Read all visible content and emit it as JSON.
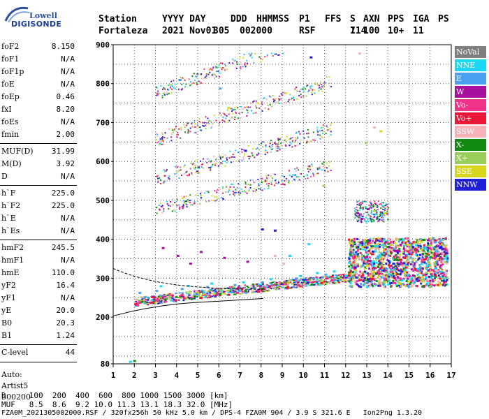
{
  "logo": {
    "line1": "Lowell",
    "line2": "DIGISONDE"
  },
  "header": {
    "labels": [
      "Station",
      "YYYY DAY",
      "DDD",
      "HHMMSS",
      "P1",
      "FFS",
      "S",
      "AXN",
      "PPS",
      "IGA",
      "PS"
    ],
    "values": [
      "Fortaleza",
      "2021 Nov01",
      "305",
      "002000",
      "RSF",
      "1",
      "714",
      "100",
      "10+",
      "11"
    ]
  },
  "params": [
    {
      "name": "foF2",
      "value": "8.150"
    },
    {
      "name": "foF1",
      "value": "N/A"
    },
    {
      "name": "foF1p",
      "value": "N/A"
    },
    {
      "name": "foE",
      "value": "N/A"
    },
    {
      "name": "foEp",
      "value": "0.46"
    },
    {
      "name": "fxI",
      "value": "8.20"
    },
    {
      "name": "foEs",
      "value": "N/A"
    },
    {
      "name": "fmin",
      "value": "2.00"
    },
    {
      "name": "MUF(D)",
      "value": "31.99"
    },
    {
      "name": "M(D)",
      "value": "3.92"
    },
    {
      "name": "D",
      "value": "N/A"
    },
    {
      "name": "h`F",
      "value": "225.0"
    },
    {
      "name": "h`F2",
      "value": "225.0"
    },
    {
      "name": "h`E",
      "value": "N/A"
    },
    {
      "name": "h`Es",
      "value": "N/A"
    },
    {
      "name": "hmF2",
      "value": "245.5"
    },
    {
      "name": "hmF1",
      "value": "N/A"
    },
    {
      "name": "hmE",
      "value": "110.0"
    },
    {
      "name": "yF2",
      "value": "16.4"
    },
    {
      "name": "yF1",
      "value": "N/A"
    },
    {
      "name": "yE",
      "value": "20.0"
    },
    {
      "name": "B0",
      "value": "20.3"
    },
    {
      "name": "B1",
      "value": "1.24"
    },
    {
      "name": "C-level",
      "value": "44"
    }
  ],
  "auto": {
    "line1": "Auto:",
    "line2": "Artist5",
    "line3": "500200"
  },
  "legend": [
    {
      "label": "NoVal",
      "color": "#7f7f7f"
    },
    {
      "label": "NNE",
      "color": "#19d7f5"
    },
    {
      "label": "E",
      "color": "#4aa0f0"
    },
    {
      "label": "W",
      "color": "#a6109c"
    },
    {
      "label": "Vo-",
      "color": "#f0348a"
    },
    {
      "label": "Vo+",
      "color": "#ea1838"
    },
    {
      "label": "SSW",
      "color": "#f6b2b8"
    },
    {
      "label": "X-",
      "color": "#128a12"
    },
    {
      "label": "X+",
      "color": "#9acd5a"
    },
    {
      "label": "SSE",
      "color": "#d6d61a"
    },
    {
      "label": "NNW",
      "color": "#2020d8"
    }
  ],
  "bottom": {
    "d_line": "D     100  200  400  600  800 1000 1500 3000 [km]",
    "muf_line": "MUF   8.5  8.6  9.2 10.0 11.3 13.1 18.3 32.0 [MHz]",
    "footer": "FZA0M_2021305002000.RSF / 320fx256h 50 kHz 5.0 km / DPS-4 FZA0M 904 / 3.9 S 321.6 E   Ion2Png 1.3.20"
  },
  "chart_data": {
    "type": "scatter",
    "xlabel": "",
    "ylabel": "",
    "xlim": [
      1,
      17
    ],
    "ylim": [
      80,
      900
    ],
    "x_ticks": [
      1,
      2,
      3,
      4,
      5,
      6,
      7,
      8,
      9,
      10,
      11,
      12,
      13,
      14,
      15,
      16,
      17
    ],
    "y_ticks": [
      80,
      200,
      300,
      400,
      500,
      600,
      700,
      800,
      900
    ],
    "grid": true,
    "series": [
      {
        "name": "NNE",
        "color": "#19d7f5",
        "x": [
          3.2,
          4.5,
          5.6,
          7.1,
          8.4,
          9.8,
          10.6,
          11.4,
          10.2,
          9.3
        ],
        "y": [
          282,
          283,
          289,
          292,
          300,
          308,
          316,
          320,
          390,
          360
        ]
      },
      {
        "name": "E",
        "color": "#4aa0f0",
        "x": [
          2.2,
          3.0,
          4.2,
          5.4,
          6.7,
          8.0,
          9.6,
          11.0,
          4.1,
          6.0
        ],
        "y": [
          265,
          270,
          275,
          280,
          285,
          292,
          302,
          312,
          812,
          790
        ]
      },
      {
        "name": "W",
        "color": "#a6109c",
        "x": [
          3.3,
          4.0,
          4.6,
          5.1,
          6.2,
          7.3,
          12.5,
          13.0,
          12.7
        ],
        "y": [
          380,
          360,
          340,
          370,
          355,
          345,
          470,
          480,
          455
        ]
      },
      {
        "name": "Vo-",
        "color": "#f0348a",
        "x": [
          2.1,
          3.0,
          4.3,
          5.5,
          6.8,
          8.1,
          9.7,
          11.3,
          12.3,
          13.5
        ],
        "y": [
          238,
          245,
          252,
          258,
          265,
          275,
          285,
          298,
          330,
          320
        ]
      },
      {
        "name": "Vo+",
        "color": "#ea1838",
        "x": [
          2.0,
          2.8,
          3.9,
          5.1,
          6.4,
          7.8,
          9.2,
          10.8,
          12.1,
          14.8,
          16.2
        ],
        "y": [
          236,
          240,
          246,
          252,
          260,
          268,
          280,
          290,
          310,
          330,
          310
        ]
      },
      {
        "name": "SSW",
        "color": "#f6b2b8",
        "x": [
          8.6,
          9.0,
          12.6,
          13.3
        ],
        "y": [
          360,
          340,
          880,
          690
        ]
      },
      {
        "name": "X-",
        "color": "#128a12",
        "x": [
          2.3,
          3.4,
          4.8,
          6.0,
          7.2,
          8.0
        ],
        "y": [
          242,
          248,
          256,
          262,
          270,
          276
        ]
      },
      {
        "name": "X+",
        "color": "#9acd5a",
        "x": [
          3.6,
          5.0,
          6.4,
          10.9,
          12.9
        ],
        "y": [
          255,
          262,
          271,
          540,
          650
        ]
      },
      {
        "name": "SSE",
        "color": "#d6d61a",
        "x": [
          6.4,
          13.3,
          13.8,
          13.6
        ],
        "y": [
          740,
          475,
          470,
          680
        ]
      },
      {
        "name": "NNW",
        "color": "#2020d8",
        "x": [
          7.2,
          8.0,
          8.6,
          10.3,
          12.4,
          13.0,
          14.2,
          15.3,
          16.4,
          14.6
        ],
        "y": [
          630,
          428,
          425,
          870,
          330,
          300,
          340,
          300,
          380,
          320
        ]
      }
    ]
  }
}
